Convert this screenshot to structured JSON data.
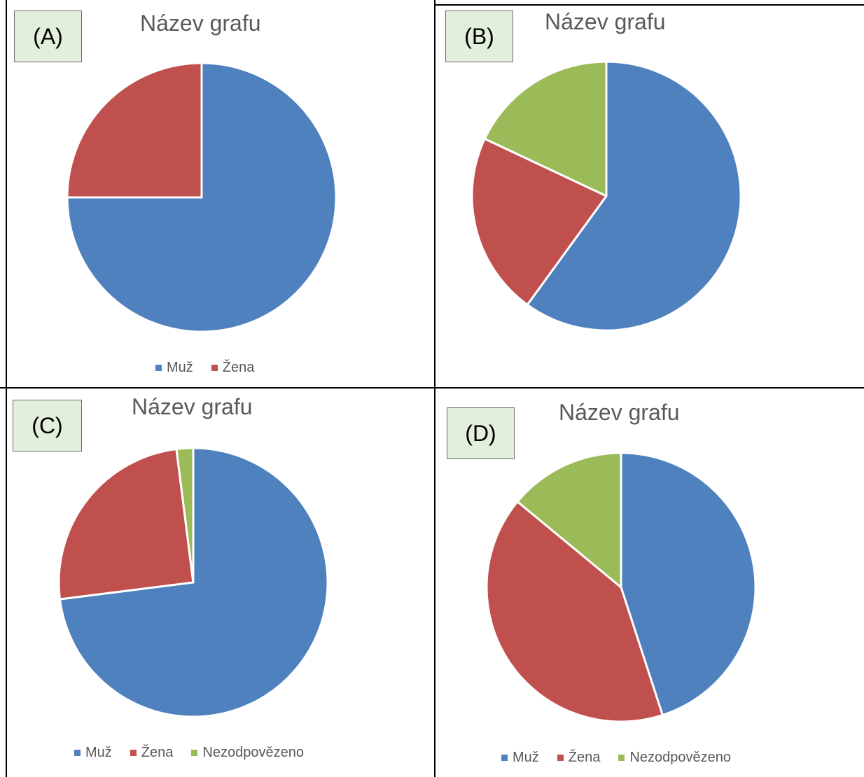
{
  "colors": {
    "muz": "#4e81bd",
    "zena": "#c0504d",
    "nezodpovezeno": "#9bbb59"
  },
  "chart_data": [
    {
      "type": "pie",
      "panel_label": "(A)",
      "title": "Název grafu",
      "categories": [
        "Muž",
        "Žena"
      ],
      "values": [
        75,
        25
      ],
      "legend": "bottom"
    },
    {
      "type": "pie",
      "panel_label": "(B)",
      "title": "Název grafu",
      "categories": [
        "Muž",
        "Žena",
        "Nezodpovězeno"
      ],
      "values": [
        60,
        22,
        18
      ],
      "legend": "none"
    },
    {
      "type": "pie",
      "panel_label": "(C)",
      "title": "Název grafu",
      "categories": [
        "Muž",
        "Žena",
        "Nezodpovězeno"
      ],
      "values": [
        73,
        25,
        2
      ],
      "legend": "bottom"
    },
    {
      "type": "pie",
      "panel_label": "(D)",
      "title": "Název grafu",
      "categories": [
        "Muž",
        "Žena",
        "Nezodpovězeno"
      ],
      "values": [
        45,
        41,
        14
      ],
      "legend": "bottom"
    }
  ]
}
